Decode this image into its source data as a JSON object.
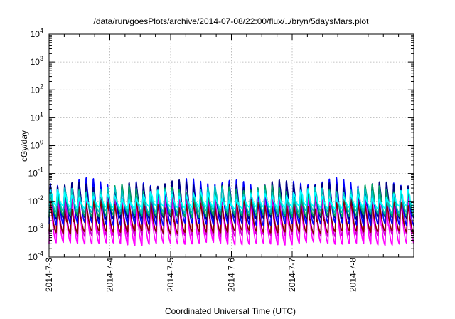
{
  "chart_data": {
    "type": "line",
    "title": "/data/run/goesPlots/archive/2014-07-08/22:00/flux/../bryn/5daysMars.plot",
    "xlabel": "Coordinated Universal Time (UTC)",
    "ylabel": "cGy/day",
    "yscale": "log",
    "ylim": [
      0.0001,
      10000
    ],
    "xlim": [
      "2014-07-03",
      "2014-07-08 22:00"
    ],
    "x_tick_labels": [
      "2014-7-3",
      "2014-7-4",
      "2014-7-5",
      "2014-7-6",
      "2014-7-7",
      "2014-7-8"
    ],
    "y_ticks": [
      {
        "base": "10",
        "exp": "-4"
      },
      {
        "base": "10",
        "exp": "-3"
      },
      {
        "base": "10",
        "exp": "-2"
      },
      {
        "base": "10",
        "exp": "-1"
      },
      {
        "base": "10",
        "exp": "0"
      },
      {
        "base": "10",
        "exp": "1"
      },
      {
        "base": "10",
        "exp": "2"
      },
      {
        "base": "10",
        "exp": "3"
      },
      {
        "base": "10",
        "exp": "4"
      }
    ],
    "grid": true,
    "legend": "none",
    "series_colors": [
      "#ff00ff",
      "#8b0000",
      "#00ffff",
      "#00a060",
      "#0000ff",
      "#000080",
      "#cc00cc",
      "#00c0c0"
    ],
    "oscillation": {
      "cycles_per_day": 8.5,
      "series": [
        {
          "color": "#ff00ff",
          "peak": 0.012,
          "trough": 0.0003
        },
        {
          "color": "#cc00cc",
          "peak": 0.02,
          "trough": 0.0006
        },
        {
          "color": "#8b0000",
          "peak": 0.009,
          "trough": 0.0008
        },
        {
          "color": "#0000ff",
          "peak": 0.055,
          "trough": 0.0015
        },
        {
          "color": "#000080",
          "peak": 0.045,
          "trough": 0.0025
        },
        {
          "color": "#00a060",
          "peak": 0.03,
          "trough": 0.003
        },
        {
          "color": "#00c0c0",
          "peak": 0.025,
          "trough": 0.004
        },
        {
          "color": "#00ffff",
          "peak": 0.018,
          "trough": 0.006
        }
      ]
    }
  }
}
